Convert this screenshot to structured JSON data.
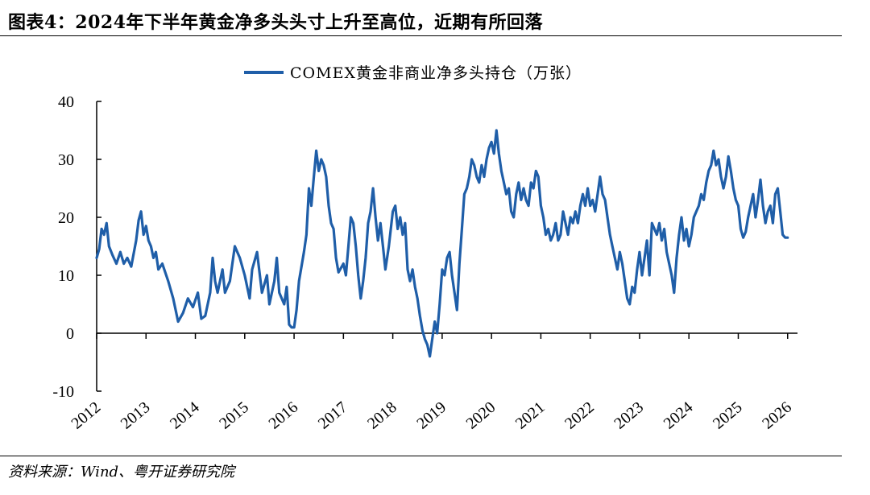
{
  "title": "图表4：2024年下半年黄金净多头头寸上升至高位，近期有所回落",
  "source": "资料来源：Wind、粤开证券研究院",
  "chart_data": {
    "type": "line",
    "series": [
      {
        "name": "COMEX黄金非商业净多头持仓（万张）",
        "color": "#1f5ea8",
        "points": [
          [
            2012.0,
            13.0
          ],
          [
            2012.05,
            14.5
          ],
          [
            2012.1,
            18.0
          ],
          [
            2012.15,
            17.0
          ],
          [
            2012.2,
            19.0
          ],
          [
            2012.25,
            15.0
          ],
          [
            2012.32,
            13.5
          ],
          [
            2012.4,
            12.0
          ],
          [
            2012.48,
            14.0
          ],
          [
            2012.55,
            12.0
          ],
          [
            2012.62,
            13.0
          ],
          [
            2012.7,
            11.5
          ],
          [
            2012.8,
            16.0
          ],
          [
            2012.85,
            19.5
          ],
          [
            2012.9,
            21.0
          ],
          [
            2012.95,
            17.0
          ],
          [
            2013.0,
            18.5
          ],
          [
            2013.05,
            16.0
          ],
          [
            2013.1,
            15.0
          ],
          [
            2013.15,
            13.0
          ],
          [
            2013.2,
            14.0
          ],
          [
            2013.25,
            11.0
          ],
          [
            2013.33,
            12.0
          ],
          [
            2013.45,
            9.0
          ],
          [
            2013.55,
            6.0
          ],
          [
            2013.65,
            2.0
          ],
          [
            2013.75,
            3.5
          ],
          [
            2013.85,
            6.0
          ],
          [
            2013.95,
            4.5
          ],
          [
            2014.05,
            7.0
          ],
          [
            2014.12,
            2.5
          ],
          [
            2014.2,
            3.0
          ],
          [
            2014.3,
            7.0
          ],
          [
            2014.35,
            13.0
          ],
          [
            2014.4,
            9.0
          ],
          [
            2014.45,
            7.0
          ],
          [
            2014.55,
            11.0
          ],
          [
            2014.6,
            7.0
          ],
          [
            2014.7,
            9.0
          ],
          [
            2014.8,
            15.0
          ],
          [
            2014.9,
            13.0
          ],
          [
            2015.0,
            10.0
          ],
          [
            2015.1,
            6.0
          ],
          [
            2015.15,
            11.0
          ],
          [
            2015.25,
            14.0
          ],
          [
            2015.35,
            7.0
          ],
          [
            2015.45,
            10.0
          ],
          [
            2015.5,
            5.0
          ],
          [
            2015.6,
            9.0
          ],
          [
            2015.65,
            13.0
          ],
          [
            2015.7,
            7.0
          ],
          [
            2015.8,
            5.0
          ],
          [
            2015.85,
            8.0
          ],
          [
            2015.9,
            1.5
          ],
          [
            2015.95,
            1.0
          ],
          [
            2016.0,
            1.0
          ],
          [
            2016.05,
            4.0
          ],
          [
            2016.1,
            9.0
          ],
          [
            2016.2,
            14.0
          ],
          [
            2016.25,
            17.0
          ],
          [
            2016.3,
            25.0
          ],
          [
            2016.35,
            22.0
          ],
          [
            2016.4,
            27.0
          ],
          [
            2016.45,
            31.5
          ],
          [
            2016.5,
            28.0
          ],
          [
            2016.55,
            30.0
          ],
          [
            2016.6,
            29.0
          ],
          [
            2016.65,
            27.0
          ],
          [
            2016.7,
            22.0
          ],
          [
            2016.75,
            19.0
          ],
          [
            2016.8,
            18.0
          ],
          [
            2016.85,
            13.0
          ],
          [
            2016.9,
            10.5
          ],
          [
            2017.0,
            12.0
          ],
          [
            2017.05,
            10.0
          ],
          [
            2017.1,
            15.0
          ],
          [
            2017.15,
            20.0
          ],
          [
            2017.2,
            19.0
          ],
          [
            2017.25,
            15.0
          ],
          [
            2017.3,
            10.0
          ],
          [
            2017.35,
            6.0
          ],
          [
            2017.4,
            9.0
          ],
          [
            2017.45,
            13.0
          ],
          [
            2017.5,
            19.0
          ],
          [
            2017.55,
            21.0
          ],
          [
            2017.6,
            25.0
          ],
          [
            2017.65,
            20.0
          ],
          [
            2017.7,
            16.0
          ],
          [
            2017.75,
            19.0
          ],
          [
            2017.8,
            15.0
          ],
          [
            2017.85,
            11.0
          ],
          [
            2017.92,
            15.0
          ],
          [
            2018.0,
            21.0
          ],
          [
            2018.05,
            22.0
          ],
          [
            2018.1,
            18.0
          ],
          [
            2018.15,
            20.0
          ],
          [
            2018.2,
            17.0
          ],
          [
            2018.25,
            19.0
          ],
          [
            2018.3,
            11.0
          ],
          [
            2018.35,
            9.0
          ],
          [
            2018.4,
            11.0
          ],
          [
            2018.45,
            8.0
          ],
          [
            2018.5,
            6.0
          ],
          [
            2018.55,
            3.0
          ],
          [
            2018.6,
            0.5
          ],
          [
            2018.65,
            -1.0
          ],
          [
            2018.7,
            -2.0
          ],
          [
            2018.75,
            -4.0
          ],
          [
            2018.8,
            -1.0
          ],
          [
            2018.85,
            2.0
          ],
          [
            2018.9,
            0.0
          ],
          [
            2018.95,
            5.0
          ],
          [
            2019.0,
            11.0
          ],
          [
            2019.05,
            10.0
          ],
          [
            2019.1,
            13.0
          ],
          [
            2019.15,
            14.0
          ],
          [
            2019.2,
            10.0
          ],
          [
            2019.25,
            7.0
          ],
          [
            2019.3,
            4.0
          ],
          [
            2019.35,
            12.0
          ],
          [
            2019.4,
            18.0
          ],
          [
            2019.45,
            24.0
          ],
          [
            2019.5,
            25.0
          ],
          [
            2019.55,
            27.0
          ],
          [
            2019.6,
            30.0
          ],
          [
            2019.65,
            29.0
          ],
          [
            2019.7,
            27.0
          ],
          [
            2019.75,
            26.0
          ],
          [
            2019.8,
            29.0
          ],
          [
            2019.85,
            27.0
          ],
          [
            2019.9,
            30.0
          ],
          [
            2019.95,
            32.0
          ],
          [
            2020.0,
            33.0
          ],
          [
            2020.05,
            31.0
          ],
          [
            2020.1,
            35.0
          ],
          [
            2020.15,
            31.0
          ],
          [
            2020.2,
            28.0
          ],
          [
            2020.25,
            26.0
          ],
          [
            2020.3,
            24.0
          ],
          [
            2020.35,
            25.0
          ],
          [
            2020.4,
            21.0
          ],
          [
            2020.45,
            20.0
          ],
          [
            2020.5,
            24.0
          ],
          [
            2020.55,
            26.0
          ],
          [
            2020.6,
            23.0
          ],
          [
            2020.65,
            25.0
          ],
          [
            2020.7,
            23.0
          ],
          [
            2020.75,
            22.0
          ],
          [
            2020.8,
            26.0
          ],
          [
            2020.85,
            25.0
          ],
          [
            2020.9,
            28.0
          ],
          [
            2020.95,
            27.0
          ],
          [
            2021.0,
            22.0
          ],
          [
            2021.05,
            20.0
          ],
          [
            2021.1,
            17.0
          ],
          [
            2021.15,
            18.0
          ],
          [
            2021.2,
            16.0
          ],
          [
            2021.25,
            17.0
          ],
          [
            2021.3,
            19.0
          ],
          [
            2021.35,
            16.0
          ],
          [
            2021.4,
            17.0
          ],
          [
            2021.45,
            21.0
          ],
          [
            2021.5,
            19.0
          ],
          [
            2021.55,
            17.0
          ],
          [
            2021.6,
            20.0
          ],
          [
            2021.65,
            19.0
          ],
          [
            2021.7,
            21.0
          ],
          [
            2021.75,
            19.0
          ],
          [
            2021.8,
            22.0
          ],
          [
            2021.85,
            24.0
          ],
          [
            2021.9,
            22.0
          ],
          [
            2021.95,
            25.0
          ],
          [
            2022.0,
            22.0
          ],
          [
            2022.05,
            23.0
          ],
          [
            2022.1,
            21.0
          ],
          [
            2022.15,
            24.0
          ],
          [
            2022.2,
            27.0
          ],
          [
            2022.25,
            24.0
          ],
          [
            2022.3,
            23.0
          ],
          [
            2022.35,
            20.0
          ],
          [
            2022.4,
            17.0
          ],
          [
            2022.45,
            15.0
          ],
          [
            2022.5,
            13.0
          ],
          [
            2022.55,
            11.0
          ],
          [
            2022.6,
            14.0
          ],
          [
            2022.65,
            12.0
          ],
          [
            2022.7,
            9.0
          ],
          [
            2022.75,
            6.0
          ],
          [
            2022.8,
            5.0
          ],
          [
            2022.85,
            8.0
          ],
          [
            2022.9,
            7.0
          ],
          [
            2022.95,
            11.0
          ],
          [
            2023.0,
            14.0
          ],
          [
            2023.05,
            10.0
          ],
          [
            2023.1,
            13.0
          ],
          [
            2023.15,
            16.0
          ],
          [
            2023.2,
            10.0
          ],
          [
            2023.25,
            19.0
          ],
          [
            2023.3,
            18.0
          ],
          [
            2023.35,
            17.0
          ],
          [
            2023.4,
            19.0
          ],
          [
            2023.45,
            16.0
          ],
          [
            2023.5,
            18.0
          ],
          [
            2023.55,
            14.0
          ],
          [
            2023.6,
            12.0
          ],
          [
            2023.65,
            10.0
          ],
          [
            2023.7,
            7.0
          ],
          [
            2023.75,
            13.0
          ],
          [
            2023.8,
            17.0
          ],
          [
            2023.85,
            20.0
          ],
          [
            2023.9,
            16.0
          ],
          [
            2023.95,
            18.0
          ],
          [
            2024.0,
            15.0
          ],
          [
            2024.05,
            17.0
          ],
          [
            2024.1,
            20.0
          ],
          [
            2024.15,
            21.0
          ],
          [
            2024.2,
            22.0
          ],
          [
            2024.25,
            24.0
          ],
          [
            2024.3,
            23.0
          ],
          [
            2024.35,
            26.0
          ],
          [
            2024.4,
            28.0
          ],
          [
            2024.45,
            29.0
          ],
          [
            2024.5,
            31.5
          ],
          [
            2024.55,
            29.0
          ],
          [
            2024.6,
            30.0
          ],
          [
            2024.65,
            27.0
          ],
          [
            2024.7,
            25.0
          ],
          [
            2024.75,
            27.0
          ],
          [
            2024.8,
            30.5
          ],
          [
            2024.85,
            28.0
          ],
          [
            2024.9,
            25.0
          ],
          [
            2024.95,
            23.0
          ],
          [
            2025.0,
            22.0
          ],
          [
            2025.05,
            18.0
          ],
          [
            2025.1,
            16.5
          ],
          [
            2025.15,
            17.5
          ],
          [
            2025.2,
            20.0
          ],
          [
            2025.25,
            22.0
          ],
          [
            2025.3,
            24.0
          ],
          [
            2025.35,
            20.0
          ],
          [
            2025.4,
            23.0
          ],
          [
            2025.45,
            26.5
          ],
          [
            2025.5,
            22.0
          ],
          [
            2025.55,
            19.0
          ],
          [
            2025.6,
            21.0
          ],
          [
            2025.65,
            22.0
          ],
          [
            2025.7,
            19.0
          ],
          [
            2025.75,
            24.0
          ],
          [
            2025.8,
            25.0
          ],
          [
            2025.85,
            21.0
          ],
          [
            2025.9,
            17.0
          ],
          [
            2025.95,
            16.5
          ],
          [
            2026.0,
            16.5
          ]
        ]
      }
    ],
    "xticks": [
      "2012",
      "2013",
      "2014",
      "2015",
      "2016",
      "2017",
      "2018",
      "2019",
      "2020",
      "2021",
      "2022",
      "2023",
      "2024",
      "2025",
      "2026"
    ],
    "xlim": [
      2012,
      2026.2
    ],
    "ylim": [
      -10,
      40
    ],
    "yticks": [
      -10,
      0,
      10,
      20,
      30,
      40
    ],
    "legend": "top-center",
    "grid": false
  }
}
